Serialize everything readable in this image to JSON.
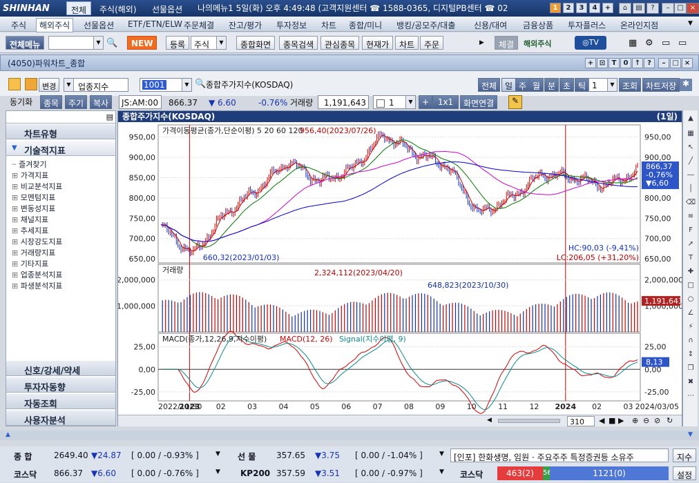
{
  "titlebar": {
    "logo": "SHINHAN",
    "tabs": [
      "전체",
      "주식(해외)",
      "선물옵션"
    ],
    "info": "나의메뉴1  5일(화) 오후 4:49:48 (고객지원센터 ☎ 1588-0365, 디지털PB센터 ☎ 02",
    "num_buttons": [
      "1",
      "2",
      "3",
      "4",
      "+"
    ]
  },
  "menu": {
    "items": [
      "주식",
      "해외주식",
      "선물옵션",
      "ETF/ETN/ELW",
      "주문체결",
      "잔고/평가",
      "투자정보",
      "차트",
      "종합/미니",
      "뱅킹/공모주/대출",
      "신용/대여",
      "금융상품",
      "투자플러스",
      "온라인지점"
    ],
    "selected": "해외주식"
  },
  "toolbar": {
    "full_menu": "전체메뉴",
    "new_badge": "NEW",
    "register": "등록",
    "stock_select": "주식",
    "b1": "종합화면",
    "b2": "종목검색",
    "b3": "관심종목",
    "b4": "현재가",
    "b5": "차트",
    "b6": "주문",
    "trade": "체결",
    "overseas": "해외주식"
  },
  "window": {
    "title": "(4050)파워차트_종합",
    "buttons": [
      "+",
      "⊡",
      "T",
      "0",
      "↑",
      "?",
      "–",
      "□",
      "×"
    ]
  },
  "controls": {
    "change": "변경",
    "category": "업종지수",
    "code": "1001",
    "name": "종합주가지수(KOSDAQ)",
    "sync": "동기화",
    "b_item": "종목",
    "b_period": "주기",
    "b_copy": "복사",
    "ticker": "JS:AM:00",
    "price": "866.37",
    "change_val": "▼ 6.60",
    "pct": "-0.76%",
    "volume_label": "거래량",
    "volume": "1,191,643",
    "count": "1",
    "multiplier": "1x1",
    "screen_link": "화면연결",
    "periods": [
      "전체",
      "일",
      "주",
      "월",
      "분",
      "초",
      "틱"
    ],
    "period_count": "1",
    "query": "조회",
    "save": "차트저장"
  },
  "leftpanel": {
    "head1": "차트유형",
    "head2": "기술적지표",
    "tree": [
      "즐겨찾기",
      "가격지표",
      "비교분석지표",
      "모멘텀지표",
      "변동성지표",
      "채널지표",
      "추세지표",
      "시장강도지표",
      "거래량지표",
      "기타지표",
      "업종분석지표",
      "파생분석지표"
    ],
    "bottom": [
      "신호/강세/약세",
      "투자자동향",
      "자동조회",
      "사용자분석"
    ]
  },
  "chart_data": {
    "type": "line",
    "title": "종합주가지수(KOSDAQ)",
    "period_badge": "(1일)",
    "price_legend": "가격이동평균(종가,단순이평) 5  20  60  120",
    "ma_labels": [
      "5",
      "20",
      "60",
      "120"
    ],
    "ma_colors": [
      "#cc0000",
      "#007700",
      "#cc00cc",
      "#0000cc"
    ],
    "price_ticks": [
      "950,00",
      "900,00",
      "850,00",
      "800,00",
      "750,00",
      "700,00",
      "650,00"
    ],
    "price_tick_values": [
      950,
      900,
      850,
      800,
      750,
      700,
      650
    ],
    "max_label": "956,40(2023/07/26)",
    "min_label": "660,32(2023/01/03)",
    "hc": "HC:90,03 (-9,41%)",
    "lc": "LC:206,05 (+31,20%)",
    "right_price": "866,37",
    "right_pct": "-0,76%",
    "right_chg": "▼6,60",
    "vol_legend": "거래량",
    "vol_ticks": [
      "2,000,000",
      "1,000,000"
    ],
    "vol_tick_values": [
      2000000,
      1000000
    ],
    "vol_max_label": "2,324,112(2023/04/20)",
    "vol_note": "648,823(2023/10/30)",
    "right_vol": "1,191,643",
    "macd_legend": "MACD(종가,12,26,9,지수이평)",
    "macd_label": "MACD(12, 26)",
    "signal_label": "Signal(지수이평, 9)",
    "macd_ticks": [
      "25,00",
      "0,00",
      "-25,00"
    ],
    "macd_tick_values": [
      25,
      0,
      -25
    ],
    "right_macd": "8,13",
    "x_labels": [
      "2022/11/30",
      "2023",
      "02",
      "03",
      "04",
      "05",
      "06",
      "07",
      "08",
      "09",
      "10",
      "11",
      "12",
      "2024",
      "02",
      "03",
      "2024/03/05"
    ],
    "close": [
      {
        "d": "2022-12",
        "v": 730
      },
      {
        "d": "2023-01-03",
        "v": 660
      },
      {
        "d": "2023-02",
        "v": 760
      },
      {
        "d": "2023-03",
        "v": 820
      },
      {
        "d": "2023-04",
        "v": 890
      },
      {
        "d": "2023-05",
        "v": 840
      },
      {
        "d": "2023-06",
        "v": 870
      },
      {
        "d": "2023-07-26",
        "v": 956
      },
      {
        "d": "2023-08",
        "v": 910
      },
      {
        "d": "2023-09",
        "v": 880
      },
      {
        "d": "2023-10",
        "v": 760
      },
      {
        "d": "2023-11",
        "v": 800
      },
      {
        "d": "2023-12",
        "v": 860
      },
      {
        "d": "2024-01",
        "v": 850
      },
      {
        "d": "2024-02",
        "v": 830
      },
      {
        "d": "2024-03-05",
        "v": 866
      }
    ]
  },
  "scroll": {
    "count": "310"
  },
  "bottom": {
    "r1": {
      "l1": "종   합",
      "v1": "2649.40",
      "c1": "▼24.87",
      "p1": "[ 0.00  / -0.93% ]",
      "l2": "선   물",
      "v2": "357.65",
      "c2": "▼3.75",
      "p2": "[ 0.00  / -1.04% ]",
      "news": "[인포] 한화생명, 임원 · 주요주주 특정증권등 소유주",
      "b": "지수"
    },
    "r2": {
      "l1": "코스닥",
      "v1": "866.37",
      "c1": "▼6.60",
      "p1": "[ 0.00  / -0.76% ]",
      "l2": "KP200",
      "v2": "357.59",
      "c2": "▼3.51",
      "p2": "[ 0.00  / -0.97% ]",
      "l3": "코스닥",
      "red": "463(2)",
      "grn": "56",
      "blu": "1121(0)",
      "b": "설정"
    }
  }
}
